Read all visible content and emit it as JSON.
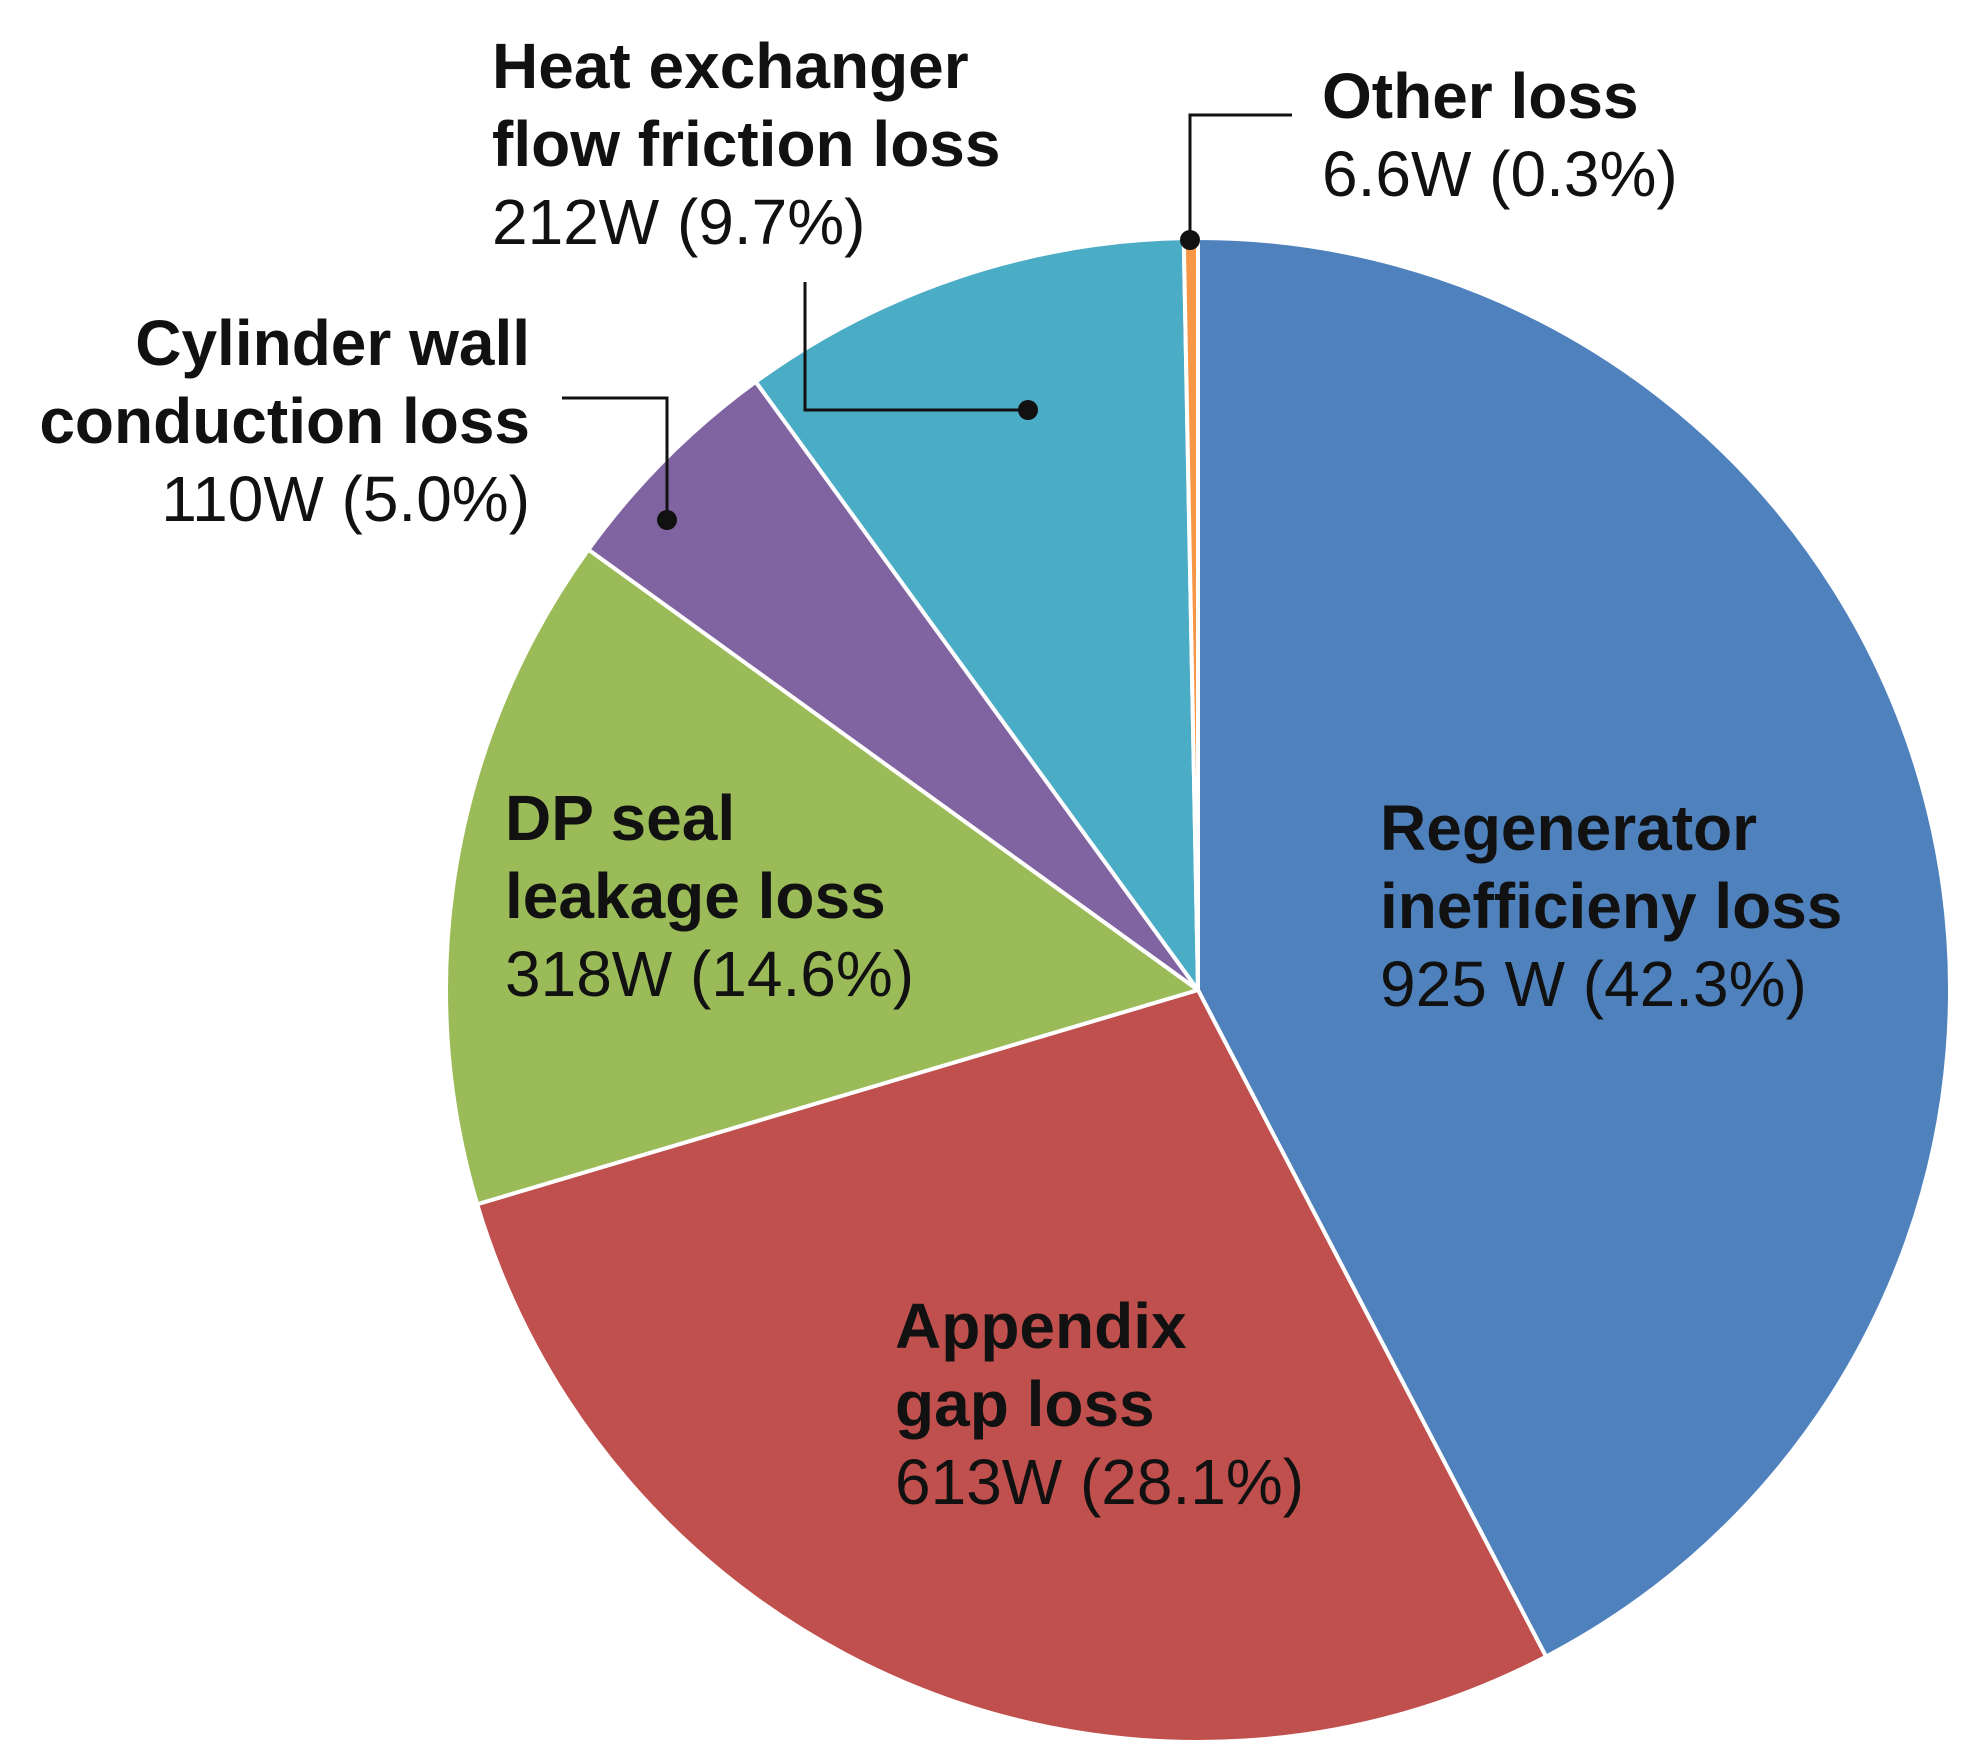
{
  "chart_data": {
    "type": "pie",
    "title": "",
    "slices": [
      {
        "name_lines": [
          "Regenerator",
          "inefficieny loss"
        ],
        "value": 925,
        "value_label": "925 W (42.3%)",
        "percent": 42.3,
        "color": "#4F81BD"
      },
      {
        "name_lines": [
          "Appendix",
          "gap loss"
        ],
        "value": 613,
        "value_label": "613W (28.1%)",
        "percent": 28.1,
        "color": "#C0504D"
      },
      {
        "name_lines": [
          "DP seal",
          "leakage loss"
        ],
        "value": 318,
        "value_label": "318W (14.6%)",
        "percent": 14.6,
        "color": "#9BBB59"
      },
      {
        "name_lines": [
          "Cylinder wall",
          "conduction loss"
        ],
        "value": 110,
        "value_label": "110W (5.0%)",
        "percent": 5.0,
        "color": "#8064A2"
      },
      {
        "name_lines": [
          "Heat exchanger",
          "flow friction loss"
        ],
        "value": 212,
        "value_label": "212W (9.7%)",
        "percent": 9.7,
        "color": "#4BACC6"
      },
      {
        "name_lines": [
          "Other loss"
        ],
        "value": 6.6,
        "value_label": "6.6W (0.3%)",
        "percent": 0.3,
        "color": "#F79646"
      }
    ],
    "start_angle_deg": 0,
    "direction": "clockwise",
    "legend": "none"
  }
}
